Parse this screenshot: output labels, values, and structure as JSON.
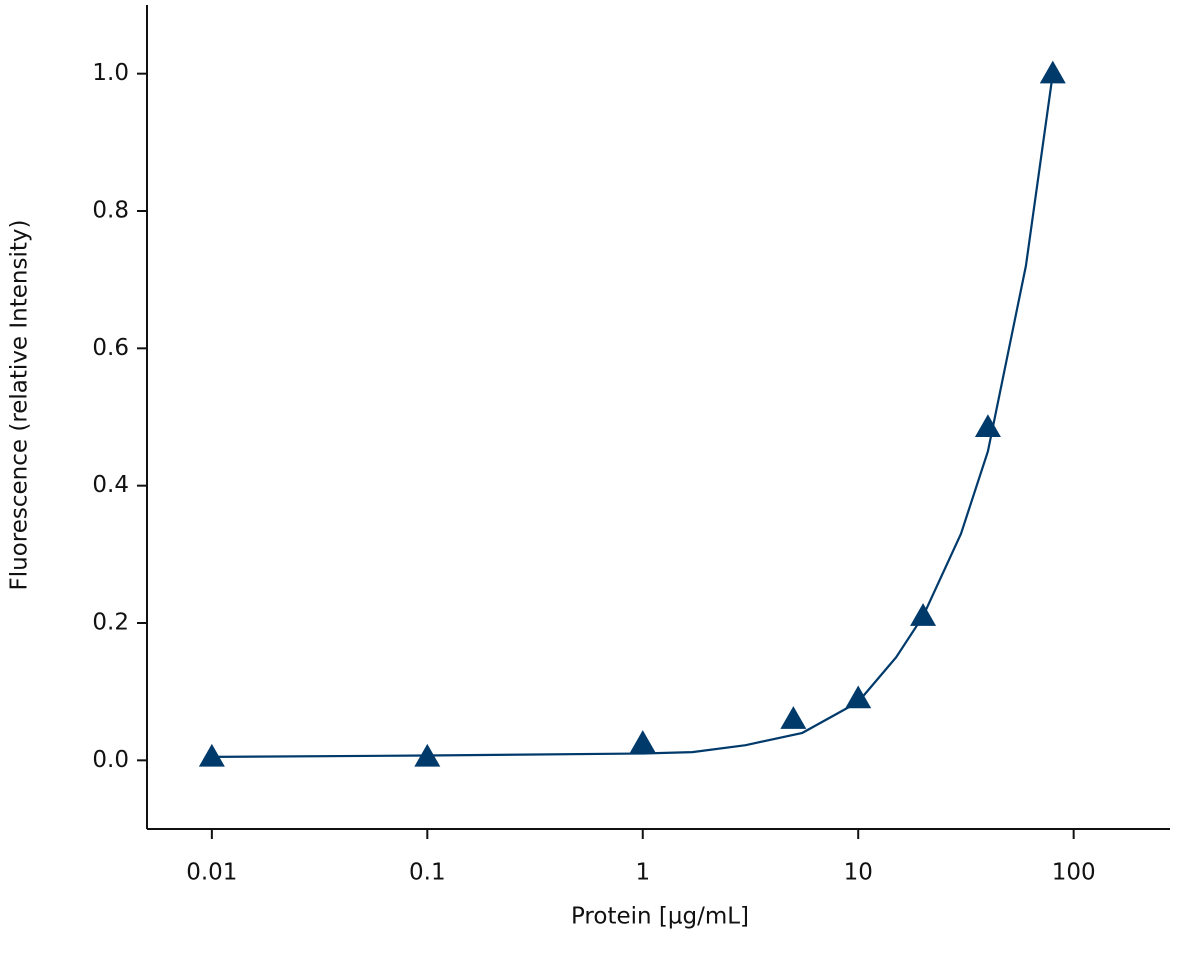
{
  "chart_data": {
    "type": "scatter",
    "xlabel": "Protein [µg/mL]",
    "ylabel": "Fluorescence (relative Intensity)",
    "x_scale": "log",
    "xlim": [
      0.005,
      280
    ],
    "xticks": [
      0.01,
      0.1,
      1,
      10,
      100
    ],
    "ylim": [
      -0.1,
      1.1
    ],
    "yticks": [
      {
        "value": 0,
        "label": "0.0"
      },
      {
        "value": 0.2,
        "label": "0.2"
      },
      {
        "value": 0.4,
        "label": "0.4"
      },
      {
        "value": 0.6,
        "label": "0.6"
      },
      {
        "value": 0.8,
        "label": "0.8"
      },
      {
        "value": 1,
        "label": "1.0"
      }
    ],
    "grid": false,
    "series": [
      {
        "style": "markers",
        "marker": "triangle",
        "color": "#003a6b",
        "x": [
          0.01,
          0.1,
          1,
          5,
          10,
          20,
          40,
          80
        ],
        "values": [
          0.005,
          0.005,
          0.025,
          0.06,
          0.09,
          0.21,
          0.485,
          1.0
        ]
      },
      {
        "style": "line",
        "color": "#003a6b",
        "x": [
          0.01,
          0.1,
          1,
          1.7,
          3,
          5.5,
          10,
          15,
          20,
          30,
          40,
          60,
          80
        ],
        "values": [
          0.005,
          0.007,
          0.01,
          0.012,
          0.022,
          0.04,
          0.085,
          0.15,
          0.21,
          0.33,
          0.45,
          0.72,
          1.0
        ]
      }
    ]
  }
}
